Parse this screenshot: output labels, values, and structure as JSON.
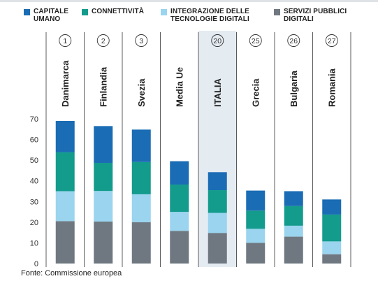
{
  "colors": {
    "capitale_umano": "#1a6cb4",
    "connettivita": "#139b8c",
    "integrazione": "#9ad4ef",
    "servizi": "#6f7880",
    "highlight_band": "#e4ecf2",
    "background": "#ffffff"
  },
  "chart_data": {
    "type": "bar",
    "stacked": true,
    "categories": [
      "Danimarca",
      "Finlandia",
      "Svezia",
      "Media Ue",
      "ITALIA",
      "Grecia",
      "Bulgaria",
      "Romania"
    ],
    "ranks": [
      "1",
      "2",
      "3",
      "",
      "20",
      "25",
      "26",
      "27"
    ],
    "highlight": "ITALIA",
    "series": [
      {
        "name": "SERVIZI PUBBLICI\nDIGITALI",
        "color": "#6f7880",
        "values": [
          20.5,
          20.3,
          20.0,
          15.8,
          14.8,
          10.0,
          13.0,
          4.5
        ]
      },
      {
        "name": "INTEGRAZIONE DELLE\nTECNOLOGIE DIGITALI",
        "color": "#9ad4ef",
        "values": [
          14.5,
          14.8,
          13.5,
          9.2,
          9.7,
          6.8,
          5.3,
          6.2
        ]
      },
      {
        "name": "CONNETTIVITÀ",
        "color": "#139b8c",
        "values": [
          18.8,
          13.6,
          15.6,
          13.2,
          11.0,
          8.8,
          9.5,
          13.0
        ]
      },
      {
        "name": "CAPITALE\nUMANO",
        "color": "#1a6cb4",
        "values": [
          15.2,
          17.8,
          15.7,
          11.3,
          8.7,
          9.7,
          7.2,
          7.3
        ]
      }
    ],
    "legend_order": [
      3,
      2,
      1,
      0
    ],
    "yticks": [
      0,
      10,
      20,
      30,
      40,
      50,
      60,
      70
    ],
    "ylim": [
      0,
      70
    ],
    "grid": false,
    "legend_position": "top",
    "source": "Fonte: Commissione europea"
  }
}
